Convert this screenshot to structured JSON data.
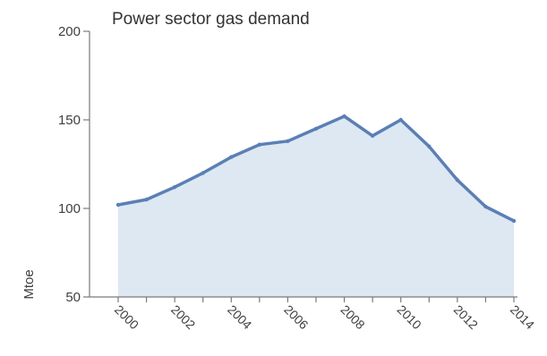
{
  "chart_data": {
    "type": "area",
    "title": "Power sector gas demand",
    "ylabel": "Mtoe",
    "xlabel": "",
    "ylim": [
      50,
      200
    ],
    "yticks": [
      50,
      100,
      150,
      200
    ],
    "x": [
      2000,
      2001,
      2002,
      2003,
      2004,
      2005,
      2006,
      2007,
      2008,
      2009,
      2010,
      2011,
      2012,
      2013,
      2014
    ],
    "xtick_labels": [
      "2000",
      "2002",
      "2004",
      "2006",
      "2008",
      "2010",
      "2012",
      "2014"
    ],
    "series": [
      {
        "values": [
          102,
          105,
          112,
          120,
          129,
          136,
          138,
          145,
          152,
          141,
          150,
          135,
          116,
          101,
          93
        ]
      }
    ],
    "colors": {
      "line": "#5b7fb5",
      "fill": "#dde8f3"
    },
    "grid": false
  }
}
